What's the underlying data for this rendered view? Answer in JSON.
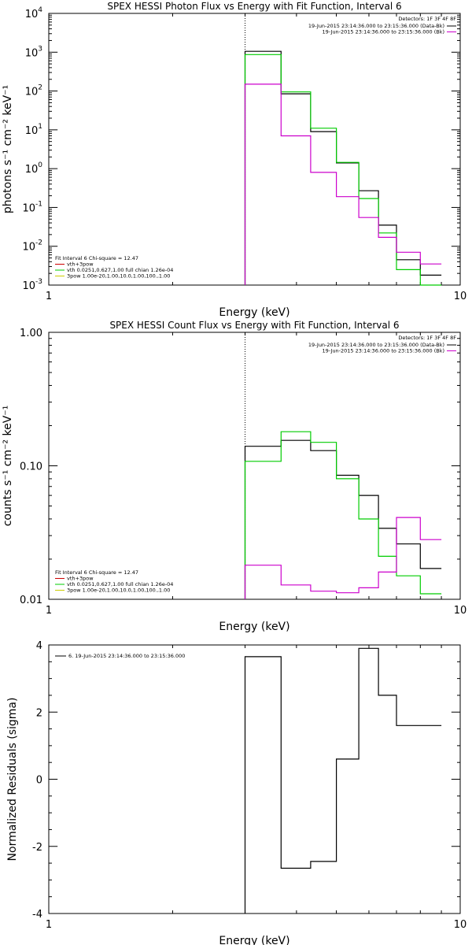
{
  "colors": {
    "black": "#000000",
    "green": "#00cc00",
    "magenta": "#cc00cc",
    "red": "#cc0000",
    "yellow": "#cccc00"
  },
  "chart_data": [
    {
      "type": "line",
      "title": "SPEX HESSI Photon Flux vs Energy with Fit Function, Interval 6",
      "xlabel": "Energy (keV)",
      "ylabel": "photons s⁻¹ cm⁻² keV⁻¹",
      "xscale": "log",
      "yscale": "log",
      "xlim": [
        1,
        10
      ],
      "ylim": [
        0.001,
        10000
      ],
      "x_ticks": [
        "1",
        "10"
      ],
      "y_ticks": [
        {
          "value": 0.001,
          "base": "10",
          "exp": "-3"
        },
        {
          "value": 0.01,
          "base": "10",
          "exp": "-2"
        },
        {
          "value": 0.1,
          "base": "10",
          "exp": "-1"
        },
        {
          "value": 1,
          "base": "10",
          "exp": "0"
        },
        {
          "value": 10,
          "base": "10",
          "exp": "1"
        },
        {
          "value": 100,
          "base": "10",
          "exp": "2"
        },
        {
          "value": 1000,
          "base": "10",
          "exp": "3"
        },
        {
          "value": 10000,
          "base": "10",
          "exp": "4"
        }
      ],
      "vline_x": 3.0,
      "edges": [
        3.0,
        3.67,
        4.33,
        5.0,
        5.67,
        6.33,
        7.0,
        8.0,
        9.0,
        10.0
      ],
      "series": [
        {
          "color": "black",
          "values": [
            1050,
            85,
            9,
            1.4,
            0.27,
            0.035,
            0.0045,
            0.0018
          ]
        },
        {
          "color": "green",
          "values": [
            870,
            95,
            11,
            1.45,
            0.17,
            0.022,
            0.0025,
            0.001
          ]
        },
        {
          "color": "magenta",
          "values": [
            150,
            7,
            0.8,
            0.19,
            0.055,
            0.017,
            0.007,
            0.0035
          ]
        }
      ],
      "legend_right": {
        "header": "Detectors: 1F 3F 4F 8F",
        "entries": [
          {
            "text": "19-Jun-2015 23:14:36.000 to 23:15:36.000 (Data-Bk)",
            "color": "black"
          },
          {
            "text": "19-Jun-2015 23:14:36.000 to 23:15:36.000 (Bk)",
            "color": "magenta"
          }
        ]
      },
      "legend_left": {
        "header": "Fit Interval  6    Chi-square = 12.47",
        "entries": [
          {
            "text": "vth+3pow",
            "color": "red"
          },
          {
            "text": "vth 0.0251,0.627,1.00  full chian 1.26e-04",
            "color": "green"
          },
          {
            "text": "3pow 1.00e-20,1.00,10.0,1.00,100.,1.00",
            "color": "yellow"
          }
        ]
      }
    },
    {
      "type": "line",
      "title": "SPEX HESSI Count Flux vs Energy with Fit Function, Interval 6",
      "xlabel": "Energy (keV)",
      "ylabel": "counts s⁻¹ cm⁻² keV⁻¹",
      "xscale": "log",
      "yscale": "log",
      "xlim": [
        1,
        10
      ],
      "ylim": [
        0.01,
        1.0
      ],
      "x_ticks": [
        "1",
        "10"
      ],
      "y_ticks": [
        {
          "value": 0.01,
          "label": "0.01"
        },
        {
          "value": 0.1,
          "label": "0.10"
        },
        {
          "value": 1.0,
          "label": "1.00"
        }
      ],
      "vline_x": 3.0,
      "edges": [
        3.0,
        3.67,
        4.33,
        5.0,
        5.67,
        6.33,
        7.0,
        8.0,
        9.0,
        10.0
      ],
      "series": [
        {
          "color": "black",
          "values": [
            0.14,
            0.155,
            0.13,
            0.085,
            0.06,
            0.034,
            0.026,
            0.017
          ]
        },
        {
          "color": "green",
          "values": [
            0.108,
            0.18,
            0.15,
            0.08,
            0.04,
            0.021,
            0.015,
            0.011
          ]
        },
        {
          "color": "magenta",
          "values": [
            0.018,
            0.0128,
            0.0115,
            0.0112,
            0.0122,
            0.016,
            0.041,
            0.028
          ]
        }
      ],
      "legend_right": {
        "header": "Detectors: 1F 3F 4F 8F",
        "entries": [
          {
            "text": "19-Jun-2015 23:14:36.000 to 23:15:36.000 (Data-Bk)",
            "color": "black"
          },
          {
            "text": "19-Jun-2015 23:14:36.000 to 23:15:36.000 (Bk)",
            "color": "magenta"
          }
        ]
      },
      "legend_left": {
        "header": "Fit Interval  6    Chi-square = 12.47",
        "entries": [
          {
            "text": "vth+3pow",
            "color": "red"
          },
          {
            "text": "vth 0.0251,0.627,1.00  full chian 1.26e-04",
            "color": "green"
          },
          {
            "text": "3pow 1.00e-20,1.00,10.0,1.00,100.,1.00",
            "color": "yellow"
          }
        ]
      }
    },
    {
      "type": "line",
      "title": "",
      "xlabel": "Energy (keV)",
      "ylabel": "Normalized Residuals (sigma)",
      "xscale": "log",
      "yscale": "linear",
      "xlim": [
        1,
        10
      ],
      "ylim": [
        -4,
        4
      ],
      "x_ticks": [
        "1",
        "10"
      ],
      "y_ticks": [
        {
          "value": -4,
          "label": "-4"
        },
        {
          "value": -2,
          "label": "-2"
        },
        {
          "value": 0,
          "label": "0"
        },
        {
          "value": 2,
          "label": "2"
        },
        {
          "value": 4,
          "label": "4"
        }
      ],
      "edges": [
        3.0,
        3.67,
        4.33,
        5.0,
        5.67,
        6.33,
        7.0,
        8.0,
        9.0,
        10.0
      ],
      "series": [
        {
          "color": "black",
          "values": [
            3.65,
            -2.65,
            -2.45,
            0.6,
            3.9,
            2.5,
            1.6,
            1.6
          ]
        }
      ],
      "legend_left": {
        "header": "",
        "entries": [
          {
            "text": "6. 19-Jun-2015 23:14:36.000 to 23:15:36.000",
            "color": "black"
          }
        ]
      }
    }
  ]
}
